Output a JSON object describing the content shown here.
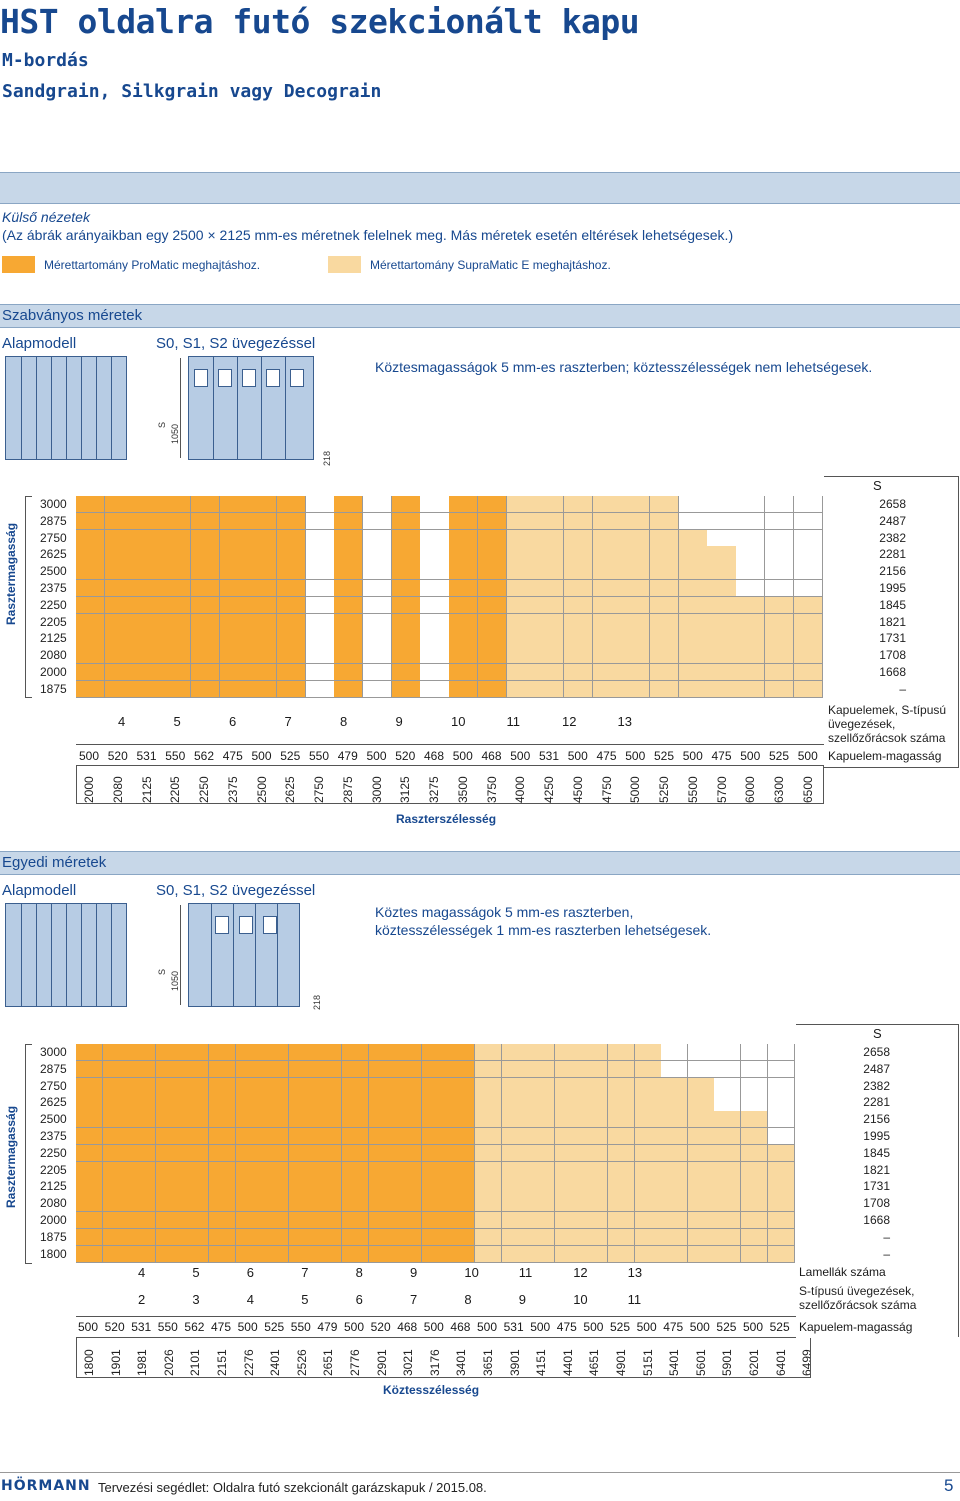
{
  "header": {
    "title": "HST oldalra futó szekcionált kapu",
    "subtitle1": "M-bordás",
    "subtitle2": "Sandgrain, Silkgrain vagy Decograin"
  },
  "intro": {
    "heading": "Külső nézetek",
    "note": "(Az ábrák arányaikban egy 2500 × 2125 mm-es méretnek felelnek meg. Más méretek esetén eltérések lehetségesek.)",
    "legend_promatic": "Mérettartomány ProMatic meghajtáshoz.",
    "legend_supramatic": "Mérettartomány SupraMatic E meghajtáshoz."
  },
  "colors": {
    "orange": "#f7a833",
    "light": "#f9d9a0",
    "band": "#c7d7e8",
    "blue": "#17488f"
  },
  "section1": {
    "band": "Szabványos méretek",
    "alapmodell": "Alapmodell",
    "glazed": "S0, S1, S2 üvegezéssel",
    "desc": "Köztesmagasságok 5 mm-es raszterben; köztesszélességek nem lehetségesek.",
    "dim_s": "S",
    "dim_1050": "1050",
    "dim_218": "218",
    "row_axis": "Rasztermagasság",
    "col_axis": "Raszterszélesség",
    "s_header": "S",
    "row_labels": [
      "3000",
      "2875",
      "2750",
      "2625",
      "2500",
      "2375",
      "2250",
      "2205",
      "2125",
      "2080",
      "2000",
      "1875"
    ],
    "s_values": [
      "2658",
      "2487",
      "2382",
      "2281",
      "2156",
      "1995",
      "1845",
      "1821",
      "1731",
      "1708",
      "1668",
      "–"
    ],
    "col_labels": [
      "2000",
      "2080",
      "2125",
      "2205",
      "2250",
      "2375",
      "2500",
      "2625",
      "2750",
      "2875",
      "3000",
      "3125",
      "3275",
      "3500",
      "3750",
      "4000",
      "4250",
      "4500",
      "4750",
      "5000",
      "5250",
      "5500",
      "5700",
      "6000",
      "6300",
      "6500"
    ],
    "elem_counts": [
      "4",
      "5",
      "6",
      "7",
      "8",
      "9",
      "10",
      "11",
      "12",
      "13"
    ],
    "elem_label": "Kapuelemek, S-típusú üvegezések, szellőzőrácsok száma",
    "heights": [
      "500",
      "520",
      "531",
      "550",
      "562",
      "475",
      "500",
      "525",
      "550",
      "479",
      "500",
      "520",
      "468",
      "500",
      "468",
      "500",
      "531",
      "500",
      "475",
      "500",
      "525",
      "500",
      "475",
      "500",
      "525",
      "500"
    ],
    "height_label": "Kapuelem-magasság"
  },
  "section2": {
    "band": "Egyedi méretek",
    "alapmodell": "Alapmodell",
    "glazed": "S0, S1, S2 üvegezéssel",
    "desc1": "Köztes magasságok 5 mm-es raszterben,",
    "desc2": "köztesszélességek 1 mm-es raszterben lehetségesek.",
    "dim_s": "S",
    "dim_1050": "1050",
    "dim_218": "218",
    "row_axis": "Rasztermagasság",
    "col_axis": "Köztesszélesség",
    "s_header": "S",
    "row_labels": [
      "3000",
      "2875",
      "2750",
      "2625",
      "2500",
      "2375",
      "2250",
      "2205",
      "2125",
      "2080",
      "2000",
      "1875",
      "1800"
    ],
    "s_values": [
      "2658",
      "2487",
      "2382",
      "2281",
      "2156",
      "1995",
      "1845",
      "1821",
      "1731",
      "1708",
      "1668",
      "–",
      "–"
    ],
    "col_labels": [
      "1800",
      "1901",
      "1981",
      "2026",
      "2101",
      "2151",
      "2276",
      "2401",
      "2526",
      "2651",
      "2776",
      "2901",
      "3021",
      "3176",
      "3401",
      "3651",
      "3901",
      "4151",
      "4401",
      "4651",
      "4901",
      "5151",
      "5401",
      "5601",
      "5901",
      "6201",
      "6401",
      "6499"
    ],
    "lamella_counts": [
      "4",
      "5",
      "6",
      "7",
      "8",
      "9",
      "10",
      "11",
      "12",
      "13"
    ],
    "lamella_label": "Lamellák száma",
    "s_counts": [
      "2",
      "3",
      "4",
      "5",
      "6",
      "7",
      "8",
      "9",
      "10",
      "11"
    ],
    "s_label": "S-típusú üvegezések, szellőzőrácsok száma",
    "heights": [
      "500",
      "520",
      "531",
      "550",
      "562",
      "475",
      "500",
      "525",
      "550",
      "479",
      "500",
      "520",
      "468",
      "500",
      "468",
      "500",
      "531",
      "500",
      "475",
      "500",
      "525",
      "500",
      "475",
      "500",
      "525",
      "500",
      "525"
    ],
    "height_label": "Kapuelem-magasság"
  },
  "footer": {
    "logo": "HÖRMANN",
    "text": "Tervezési segédlet: Oldalra futó szekcionált garázskapuk / 2015.08.",
    "page": "5"
  }
}
